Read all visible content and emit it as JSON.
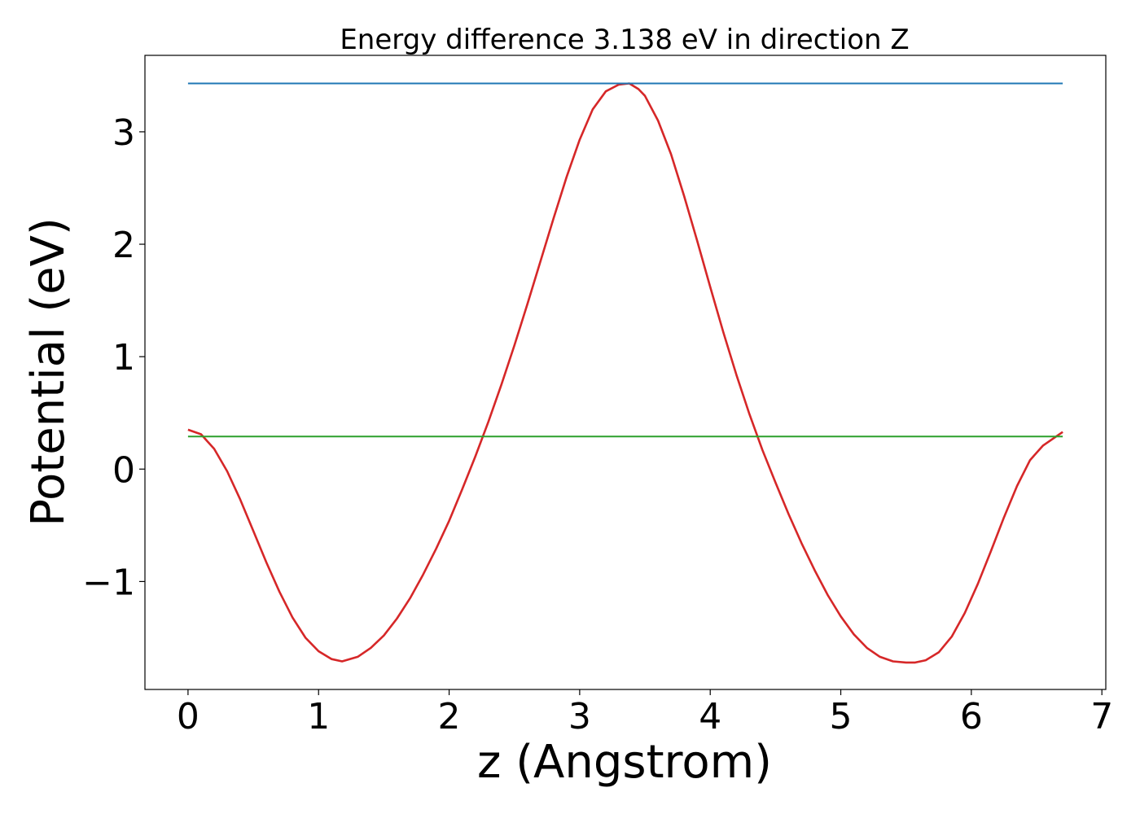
{
  "chart_data": {
    "type": "line",
    "title": "Energy difference 3.138 eV in direction Z",
    "xlabel": "z (Angstrom)",
    "ylabel": "Potential (eV)",
    "xlim": [
      -0.33,
      7.03
    ],
    "ylim": [
      -1.96,
      3.68
    ],
    "xticks": [
      0,
      1,
      2,
      3,
      4,
      5,
      6,
      7
    ],
    "xtick_labels": [
      "0",
      "1",
      "2",
      "3",
      "4",
      "5",
      "6",
      "7"
    ],
    "yticks": [
      -1,
      0,
      1,
      2,
      3
    ],
    "ytick_labels": [
      "−1",
      "0",
      "1",
      "2",
      "3"
    ],
    "grid": false,
    "series": [
      {
        "color": "#d62728",
        "x": [
          0.0,
          0.1,
          0.2,
          0.3,
          0.4,
          0.5,
          0.6,
          0.7,
          0.8,
          0.9,
          1.0,
          1.1,
          1.18,
          1.3,
          1.4,
          1.5,
          1.6,
          1.7,
          1.8,
          1.9,
          2.0,
          2.1,
          2.2,
          2.3,
          2.4,
          2.5,
          2.6,
          2.7,
          2.8,
          2.9,
          3.0,
          3.1,
          3.2,
          3.3,
          3.38,
          3.45,
          3.5,
          3.6,
          3.7,
          3.8,
          3.9,
          4.0,
          4.1,
          4.2,
          4.3,
          4.4,
          4.5,
          4.6,
          4.7,
          4.8,
          4.9,
          5.0,
          5.1,
          5.2,
          5.3,
          5.4,
          5.5,
          5.57,
          5.65,
          5.75,
          5.85,
          5.95,
          6.05,
          6.15,
          6.25,
          6.35,
          6.45,
          6.55,
          6.65,
          6.7
        ],
        "y": [
          0.35,
          0.31,
          0.18,
          -0.02,
          -0.27,
          -0.55,
          -0.83,
          -1.09,
          -1.32,
          -1.5,
          -1.62,
          -1.69,
          -1.71,
          -1.67,
          -1.59,
          -1.48,
          -1.33,
          -1.15,
          -0.94,
          -0.71,
          -0.46,
          -0.18,
          0.11,
          0.42,
          0.75,
          1.1,
          1.47,
          1.85,
          2.23,
          2.6,
          2.93,
          3.2,
          3.36,
          3.42,
          3.43,
          3.38,
          3.32,
          3.1,
          2.8,
          2.43,
          2.03,
          1.62,
          1.22,
          0.84,
          0.49,
          0.17,
          -0.12,
          -0.4,
          -0.66,
          -0.9,
          -1.12,
          -1.31,
          -1.47,
          -1.59,
          -1.67,
          -1.71,
          -1.72,
          -1.72,
          -1.7,
          -1.63,
          -1.49,
          -1.28,
          -1.02,
          -0.73,
          -0.43,
          -0.15,
          0.08,
          0.21,
          0.29,
          0.33
        ]
      },
      {
        "color": "#1f77b4",
        "x": [
          0.0,
          6.7
        ],
        "y": [
          3.43,
          3.43
        ]
      },
      {
        "color": "#2ca02c",
        "x": [
          0.0,
          6.7
        ],
        "y": [
          0.29,
          0.29
        ]
      }
    ]
  }
}
